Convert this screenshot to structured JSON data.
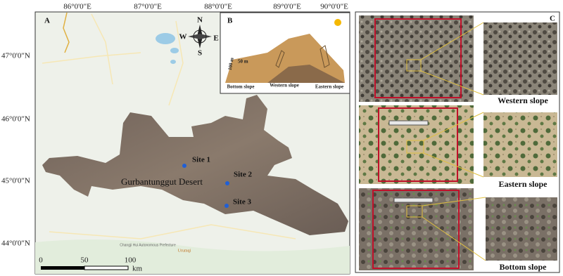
{
  "panel_a": {
    "label": "A",
    "longitudes": [
      "86°0'0\"E",
      "87°0'0\"E",
      "88°0'0\"E",
      "89°0'0\"E",
      "90°0'0\"E"
    ],
    "latitudes": [
      "47°0'0\"N",
      "46°0'0\"N",
      "45°0'0\"N",
      "44°0'0\"N"
    ],
    "compass": {
      "n": "N",
      "s": "S",
      "w": "W",
      "e": "E"
    },
    "desert": "Gurbantunggut Desert",
    "sites": [
      "Site 1",
      "Site 2",
      "Site 3"
    ],
    "places": [
      "Changji Hui Autonomous Prefecture",
      "Urumqi"
    ],
    "scale": {
      "ticks": [
        "0",
        "50",
        "100"
      ],
      "unit": "km"
    }
  },
  "panel_b": {
    "label": "B",
    "width_label": "50 m",
    "height_label": "100 m",
    "slopes": [
      "Bottom slope",
      "Western slope",
      "Eastern slope"
    ]
  },
  "panel_c": {
    "label": "C",
    "slopes": [
      "Western slope",
      "Eastern slope",
      "Bottom slope"
    ]
  }
}
